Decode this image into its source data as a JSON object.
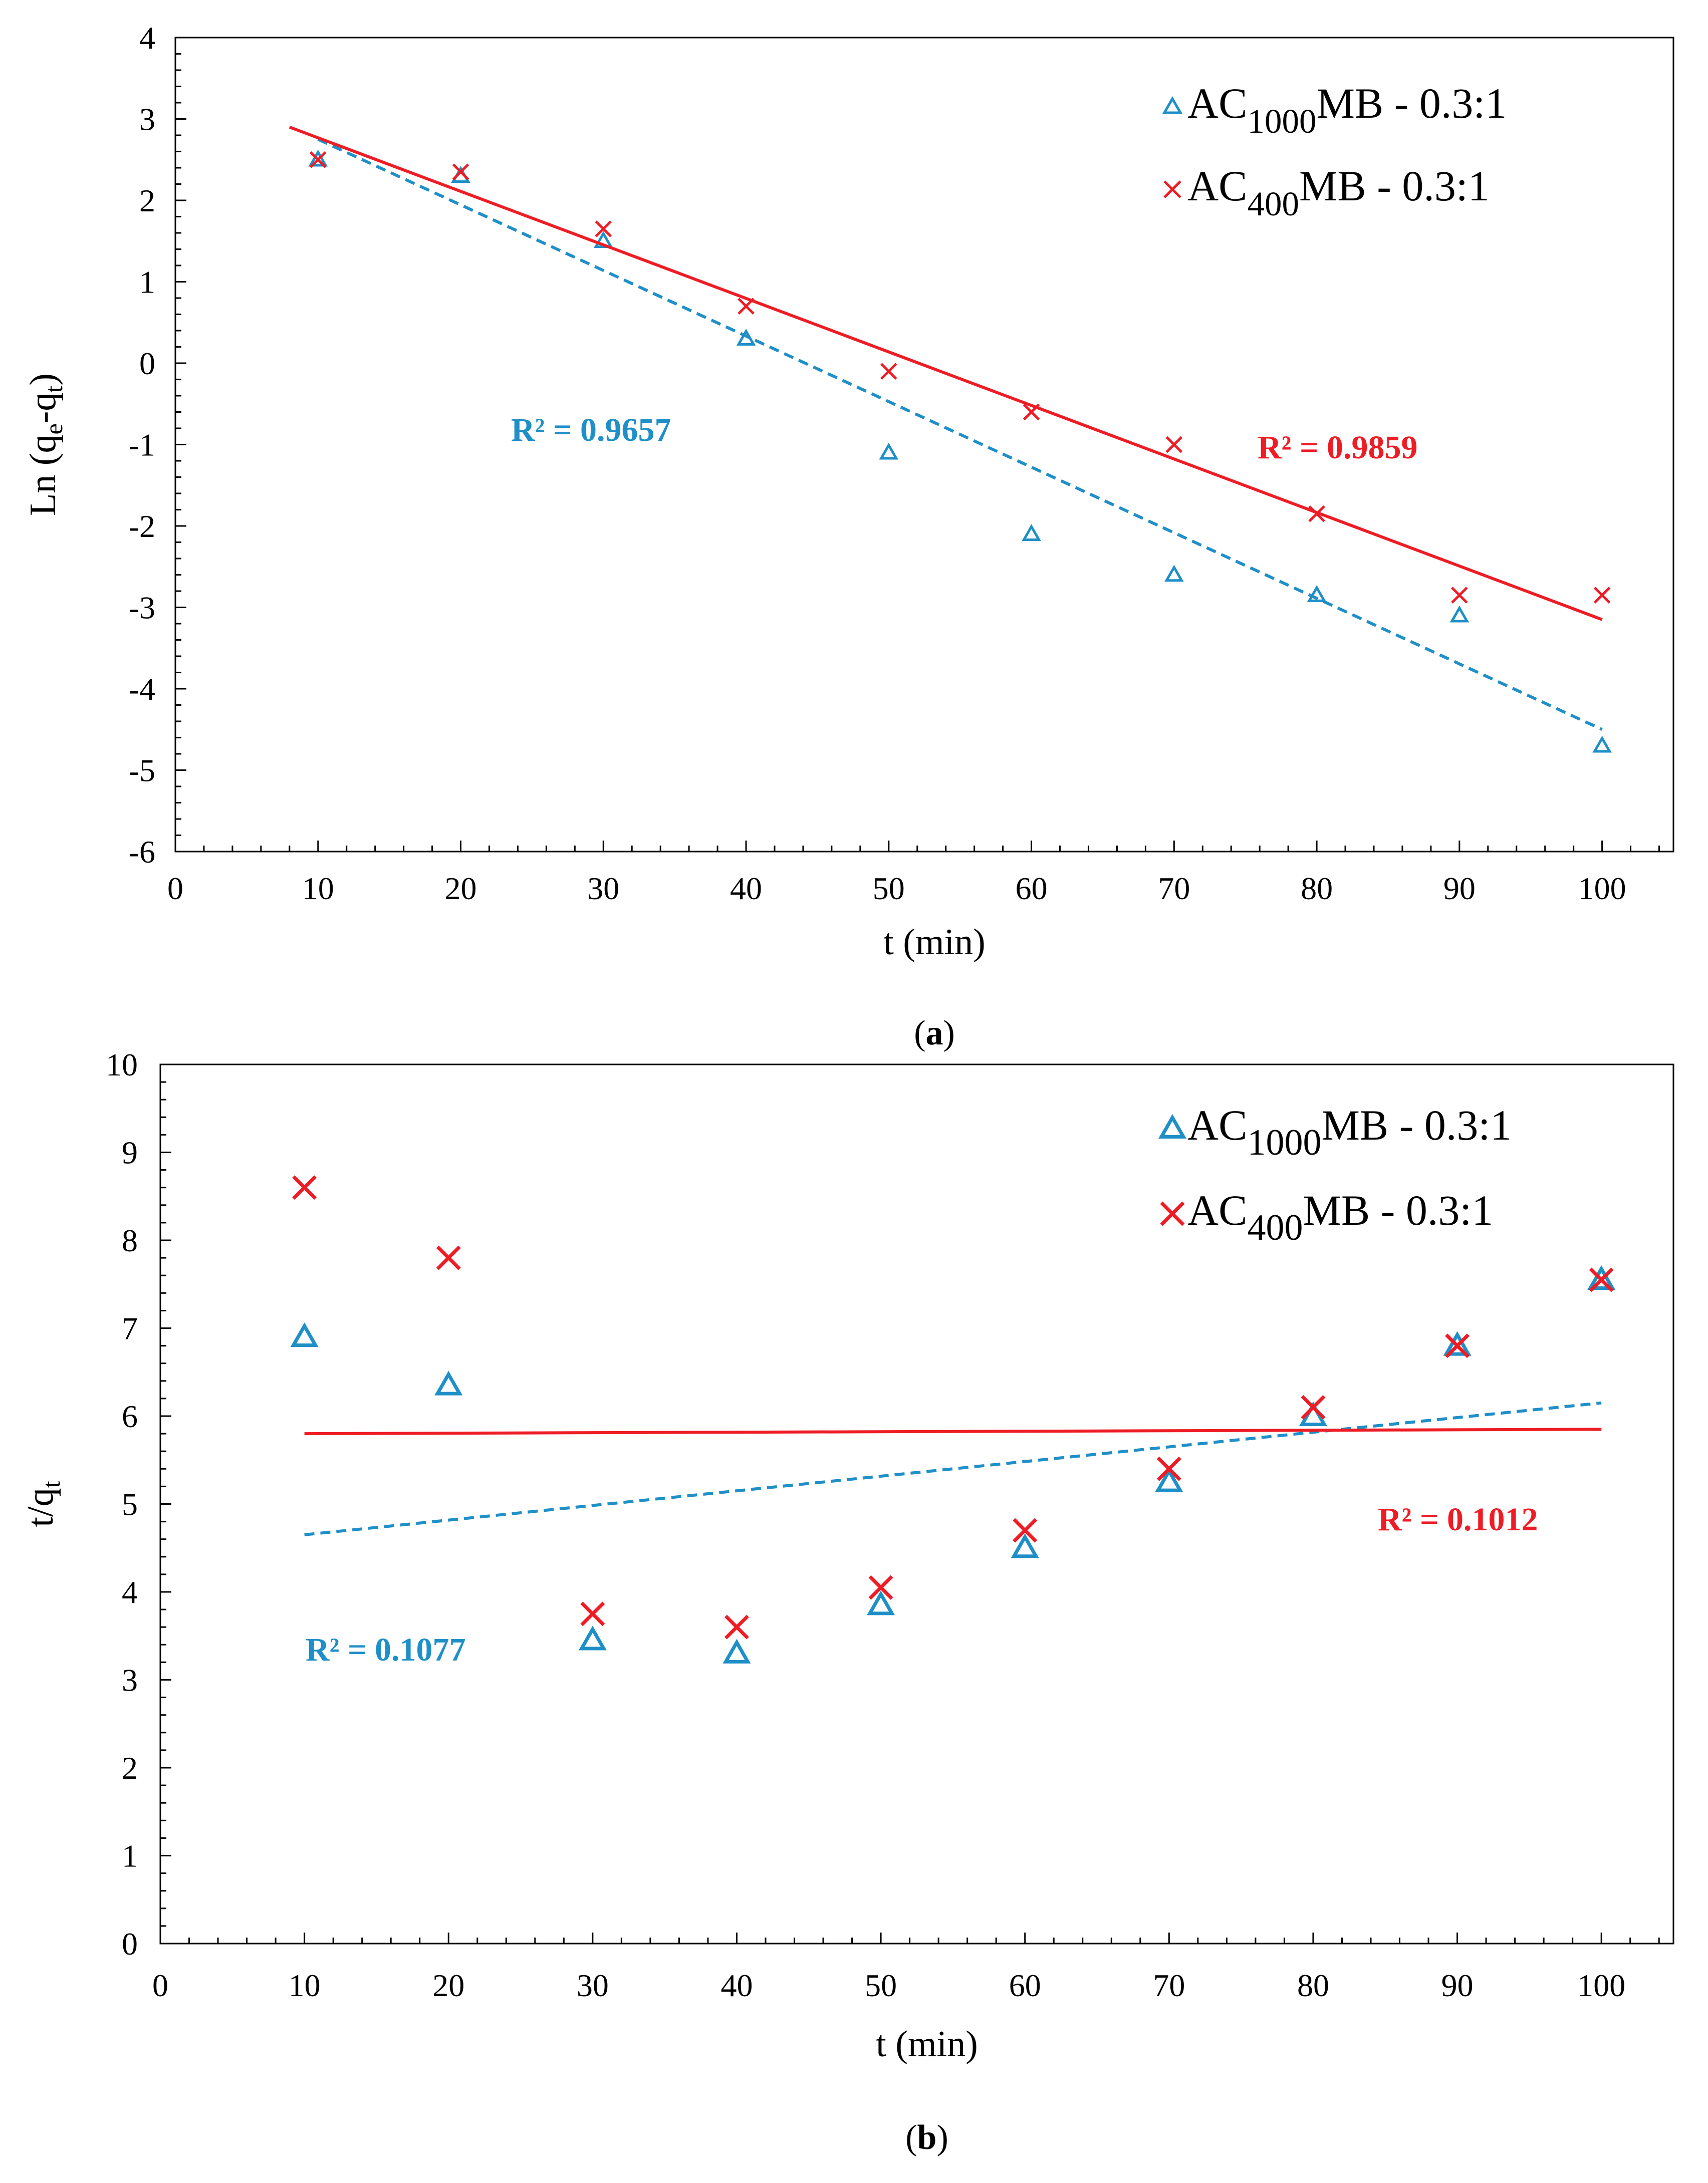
{
  "colors": {
    "blue": "#1f8fc8",
    "red": "#ee1c25",
    "axis": "#000000"
  },
  "chart_data": [
    {
      "id": "a",
      "type": "scatter",
      "caption": "(a)",
      "caption_letter": "a",
      "xlabel": "t (min)",
      "ylabel_main": "Ln (q",
      "ylabel_sub1": "e",
      "ylabel_mid": "-q",
      "ylabel_sub2": "t",
      "ylabel_end": ")",
      "xlim": [
        0,
        105
      ],
      "ylim": [
        -6,
        4
      ],
      "xticks": [
        0,
        10,
        20,
        30,
        40,
        50,
        60,
        70,
        80,
        90,
        100
      ],
      "yticks": [
        -6,
        -5,
        -4,
        -3,
        -2,
        -1,
        0,
        1,
        2,
        3,
        4
      ],
      "legend_position": "top-right",
      "series": [
        {
          "name": "AC1000MB - 0.3:1",
          "label_main": "AC",
          "label_sub": "1000",
          "label_rest": "MB - 0.3:1",
          "marker": "triangle",
          "color": "#1f8fc8",
          "x": [
            10,
            20,
            30,
            40,
            50,
            60,
            70,
            80,
            90,
            100
          ],
          "y": [
            2.5,
            2.3,
            1.5,
            0.3,
            -1.1,
            -2.1,
            -2.6,
            -2.85,
            -3.1,
            -4.7
          ],
          "trendline": {
            "style": "dashed",
            "x": [
              10,
              100
            ],
            "y": [
              2.75,
              -4.5
            ]
          },
          "r2_label": "R² = 0.9657"
        },
        {
          "name": "AC400MB - 0.3:1",
          "label_main": "AC",
          "label_sub": "400",
          "label_rest": "MB - 0.3:1",
          "marker": "x",
          "color": "#ee1c25",
          "x": [
            10,
            20,
            30,
            40,
            50,
            60,
            70,
            80,
            90,
            100
          ],
          "y": [
            2.5,
            2.35,
            1.65,
            0.7,
            -0.1,
            -0.6,
            -1.0,
            -1.85,
            -2.85,
            -2.85
          ],
          "trendline": {
            "style": "solid",
            "x": [
              8,
              100
            ],
            "y": [
              2.9,
              -3.15
            ]
          },
          "r2_label": "R² = 0.9859"
        }
      ]
    },
    {
      "id": "b",
      "type": "scatter",
      "caption": "(b)",
      "caption_letter": "b",
      "xlabel": "t (min)",
      "ylabel_main": "t/q",
      "ylabel_sub1": "t",
      "ylabel_mid": "",
      "ylabel_sub2": "",
      "ylabel_end": "",
      "xlim": [
        0,
        105
      ],
      "ylim": [
        0,
        10
      ],
      "xticks": [
        0,
        10,
        20,
        30,
        40,
        50,
        60,
        70,
        80,
        90,
        100
      ],
      "yticks": [
        0,
        1,
        2,
        3,
        4,
        5,
        6,
        7,
        8,
        9,
        10
      ],
      "legend_position": "top-right",
      "series": [
        {
          "name": "AC1000MB - 0.3:1",
          "label_main": "AC",
          "label_sub": "1000",
          "label_rest": "MB - 0.3:1",
          "marker": "triangle",
          "color": "#1f8fc8",
          "x": [
            10,
            20,
            30,
            40,
            50,
            60,
            70,
            80,
            90,
            100
          ],
          "y": [
            6.9,
            6.35,
            3.45,
            3.3,
            3.85,
            4.5,
            5.25,
            6.0,
            6.8,
            7.55
          ],
          "trendline": {
            "style": "dashed",
            "x": [
              10,
              100
            ],
            "y": [
              4.65,
              6.15
            ]
          },
          "r2_label": "R² = 0.1077"
        },
        {
          "name": "AC400MB - 0.3:1",
          "label_main": "AC",
          "label_sub": "400",
          "label_rest": "MB - 0.3:1",
          "marker": "x",
          "color": "#ee1c25",
          "x": [
            10,
            20,
            30,
            40,
            50,
            60,
            70,
            80,
            90,
            100
          ],
          "y": [
            8.6,
            7.8,
            3.75,
            3.6,
            4.05,
            4.7,
            5.4,
            6.1,
            6.8,
            7.55
          ],
          "trendline": {
            "style": "solid",
            "x": [
              10,
              100
            ],
            "y": [
              5.8,
              5.85
            ]
          },
          "r2_label": "R² = 0.1012"
        }
      ]
    }
  ]
}
